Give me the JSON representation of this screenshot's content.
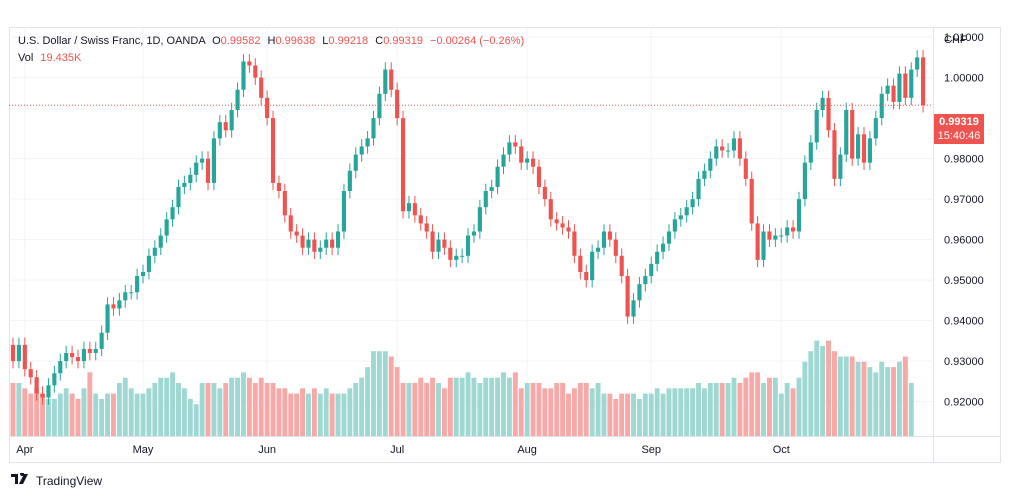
{
  "legend": {
    "symbol": "U.S. Dollar / Swiss Franc, 1D, OANDA",
    "o_label": "O",
    "o_value": "0.99582",
    "h_label": "H",
    "h_value": "0.99638",
    "l_label": "L",
    "l_value": "0.99218",
    "c_label": "C",
    "c_value": "0.99319",
    "change": "−0.00264 (−0.26%)",
    "vol_label": "Vol",
    "vol_value": "19.435K"
  },
  "axis": {
    "currency": "CHF"
  },
  "price_tag": {
    "price": "0.99319",
    "time": "15:40:46"
  },
  "brand": {
    "name": "TradingView",
    "icon": "tradingview-logo-icon"
  },
  "colors": {
    "up": "#26a69a",
    "down": "#ef5350",
    "up_vol": "#9fd8d2",
    "down_vol": "#f7a9a7",
    "grid": "#f0f3fa"
  },
  "chart_data": {
    "type": "candlestick",
    "y_ticks": [
      "1.01000",
      "1.00000",
      "0.98000",
      "0.97000",
      "0.96000",
      "0.95000",
      "0.94000",
      "0.93000",
      "0.92000"
    ],
    "ylim": [
      0.9115,
      1.0125
    ],
    "x_labels": [
      "Apr",
      "May",
      "Jun",
      "Jul",
      "Aug",
      "Sep",
      "Oct"
    ],
    "last_price": 0.99319,
    "closes": [
      0.93,
      0.934,
      0.928,
      0.926,
      0.922,
      0.921,
      0.924,
      0.927,
      0.93,
      0.932,
      0.931,
      0.93,
      0.933,
      0.932,
      0.933,
      0.937,
      0.944,
      0.943,
      0.945,
      0.947,
      0.947,
      0.951,
      0.952,
      0.956,
      0.958,
      0.961,
      0.965,
      0.968,
      0.973,
      0.974,
      0.976,
      0.979,
      0.98,
      0.974,
      0.985,
      0.989,
      0.987,
      0.992,
      0.997,
      1.004,
      1.003,
      1.0,
      0.995,
      0.99,
      0.974,
      0.972,
      0.966,
      0.962,
      0.961,
      0.958,
      0.96,
      0.957,
      0.958,
      0.96,
      0.958,
      0.962,
      0.972,
      0.977,
      0.981,
      0.983,
      0.985,
      0.99,
      0.996,
      1.002,
      0.997,
      0.99,
      0.967,
      0.969,
      0.966,
      0.964,
      0.962,
      0.957,
      0.96,
      0.958,
      0.955,
      0.956,
      0.956,
      0.961,
      0.962,
      0.968,
      0.972,
      0.973,
      0.978,
      0.981,
      0.984,
      0.983,
      0.979,
      0.98,
      0.978,
      0.973,
      0.97,
      0.965,
      0.964,
      0.963,
      0.962,
      0.956,
      0.952,
      0.95,
      0.957,
      0.958,
      0.962,
      0.96,
      0.956,
      0.951,
      0.941,
      0.945,
      0.949,
      0.951,
      0.954,
      0.957,
      0.959,
      0.962,
      0.965,
      0.966,
      0.968,
      0.97,
      0.975,
      0.977,
      0.98,
      0.983,
      0.982,
      0.982,
      0.985,
      0.98,
      0.975,
      0.964,
      0.955,
      0.962,
      0.96,
      0.961,
      0.961,
      0.963,
      0.962,
      0.97,
      0.979,
      0.984,
      0.992,
      0.995,
      0.987,
      0.975,
      0.981,
      0.992,
      0.98,
      0.986,
      0.979,
      0.985,
      0.99,
      0.996,
      0.998,
      0.994,
      1.001,
      0.995,
      1.002,
      1.005,
      0.9932
    ],
    "volumes": [
      0.5,
      0.5,
      0.45,
      0.4,
      0.45,
      0.4,
      0.35,
      0.35,
      0.4,
      0.45,
      0.4,
      0.35,
      0.45,
      0.6,
      0.4,
      0.35,
      0.4,
      0.4,
      0.5,
      0.55,
      0.45,
      0.4,
      0.4,
      0.45,
      0.5,
      0.55,
      0.55,
      0.6,
      0.5,
      0.45,
      0.35,
      0.3,
      0.5,
      0.5,
      0.5,
      0.45,
      0.5,
      0.55,
      0.55,
      0.6,
      0.55,
      0.5,
      0.55,
      0.5,
      0.5,
      0.45,
      0.45,
      0.4,
      0.4,
      0.45,
      0.4,
      0.45,
      0.4,
      0.45,
      0.4,
      0.4,
      0.4,
      0.45,
      0.5,
      0.55,
      0.65,
      0.8,
      0.8,
      0.8,
      0.75,
      0.65,
      0.5,
      0.5,
      0.5,
      0.55,
      0.5,
      0.55,
      0.5,
      0.45,
      0.55,
      0.55,
      0.55,
      0.6,
      0.55,
      0.5,
      0.55,
      0.55,
      0.55,
      0.6,
      0.55,
      0.6,
      0.45,
      0.5,
      0.5,
      0.5,
      0.45,
      0.45,
      0.5,
      0.5,
      0.4,
      0.45,
      0.5,
      0.5,
      0.45,
      0.5,
      0.4,
      0.4,
      0.35,
      0.4,
      0.4,
      0.4,
      0.35,
      0.4,
      0.4,
      0.45,
      0.4,
      0.45,
      0.45,
      0.45,
      0.45,
      0.45,
      0.5,
      0.45,
      0.5,
      0.5,
      0.5,
      0.5,
      0.55,
      0.5,
      0.55,
      0.6,
      0.6,
      0.5,
      0.55,
      0.55,
      0.4,
      0.5,
      0.45,
      0.55,
      0.7,
      0.8,
      0.9,
      0.85,
      0.9,
      0.8,
      0.75,
      0.75,
      0.75,
      0.7,
      0.7,
      0.65,
      0.6,
      0.7,
      0.65,
      0.65,
      0.7,
      0.75,
      0.5
    ]
  }
}
